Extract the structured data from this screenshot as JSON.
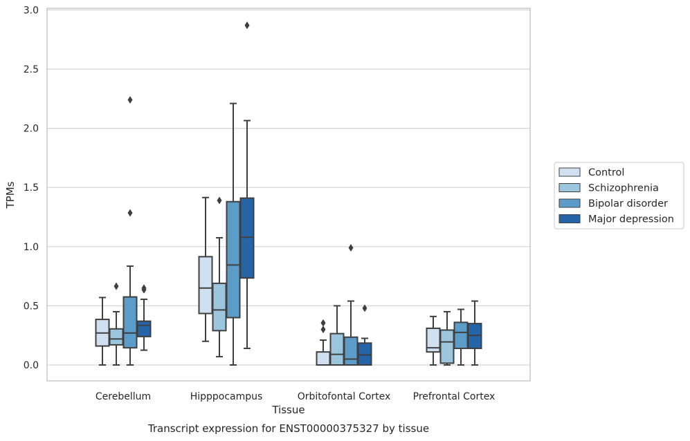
{
  "chart_data": {
    "type": "box",
    "title": "",
    "caption": "Transcript expression for ENST00000375327 by tissue",
    "xlabel": "Tissue",
    "ylabel": "TPMs",
    "ylim": [
      -0.135,
      3.02
    ],
    "yticks": [
      0.0,
      0.5,
      1.0,
      1.5,
      2.0,
      2.5,
      3.0
    ],
    "ytick_labels": [
      "0.0",
      "0.5",
      "1.0",
      "1.5",
      "2.0",
      "2.5",
      "3.0"
    ],
    "grid": "horizontal",
    "legend_position": "right",
    "categories": [
      "Cerebellum",
      "Hipppocampus",
      "Orbitofontal Cortex",
      "Prefrontal Cortex"
    ],
    "series": [
      {
        "name": "Control",
        "color": "#cfe0f1",
        "boxes": [
          {
            "whislo": 0.0,
            "q1": 0.16,
            "med": 0.27,
            "q3": 0.385,
            "whishi": 0.57,
            "fliers": []
          },
          {
            "whislo": 0.2,
            "q1": 0.435,
            "med": 0.65,
            "q3": 0.915,
            "whishi": 1.415,
            "fliers": []
          },
          {
            "whislo": 0.0,
            "q1": 0.0,
            "med": 0.0,
            "q3": 0.11,
            "whishi": 0.21,
            "fliers": [
              0.3,
              0.355
            ]
          },
          {
            "whislo": 0.0,
            "q1": 0.11,
            "med": 0.145,
            "q3": 0.31,
            "whishi": 0.41,
            "fliers": []
          }
        ]
      },
      {
        "name": "Schizophrenia",
        "color": "#9bc6de",
        "boxes": [
          {
            "whislo": 0.0,
            "q1": 0.17,
            "med": 0.22,
            "q3": 0.305,
            "whishi": 0.45,
            "fliers": [
              0.665
            ]
          },
          {
            "whislo": 0.07,
            "q1": 0.29,
            "med": 0.465,
            "q3": 0.69,
            "whishi": 1.075,
            "fliers": [
              1.39
            ]
          },
          {
            "whislo": 0.0,
            "q1": 0.0,
            "med": 0.09,
            "q3": 0.265,
            "whishi": 0.5,
            "fliers": []
          },
          {
            "whislo": 0.0,
            "q1": 0.015,
            "med": 0.195,
            "q3": 0.295,
            "whishi": 0.45,
            "fliers": []
          }
        ]
      },
      {
        "name": "Bipolar disorder",
        "color": "#5b9cc8",
        "boxes": [
          {
            "whislo": 0.0,
            "q1": 0.145,
            "med": 0.27,
            "q3": 0.575,
            "whishi": 0.835,
            "fliers": [
              1.285,
              2.24
            ]
          },
          {
            "whislo": 0.0,
            "q1": 0.4,
            "med": 0.845,
            "q3": 1.38,
            "whishi": 2.21,
            "fliers": []
          },
          {
            "whislo": 0.0,
            "q1": 0.0,
            "med": 0.05,
            "q3": 0.235,
            "whishi": 0.54,
            "fliers": [
              0.99
            ]
          },
          {
            "whislo": 0.0,
            "q1": 0.14,
            "med": 0.275,
            "q3": 0.36,
            "whishi": 0.47,
            "fliers": []
          }
        ]
      },
      {
        "name": "Major depression",
        "color": "#2565a7",
        "boxes": [
          {
            "whislo": 0.125,
            "q1": 0.24,
            "med": 0.335,
            "q3": 0.37,
            "whishi": 0.555,
            "fliers": [
              0.635,
              0.65
            ]
          },
          {
            "whislo": 0.14,
            "q1": 0.735,
            "med": 1.08,
            "q3": 1.41,
            "whishi": 2.065,
            "fliers": [
              2.87
            ]
          },
          {
            "whislo": 0.0,
            "q1": 0.0,
            "med": 0.085,
            "q3": 0.185,
            "whishi": 0.225,
            "fliers": [
              0.48
            ]
          },
          {
            "whislo": 0.0,
            "q1": 0.14,
            "med": 0.25,
            "q3": 0.35,
            "whishi": 0.54,
            "fliers": []
          }
        ]
      }
    ],
    "colors": {
      "box_edge": "#3f3f3f",
      "grid": "#d4d4d4",
      "frame": "#c8c8c8",
      "text": "#262626"
    }
  }
}
